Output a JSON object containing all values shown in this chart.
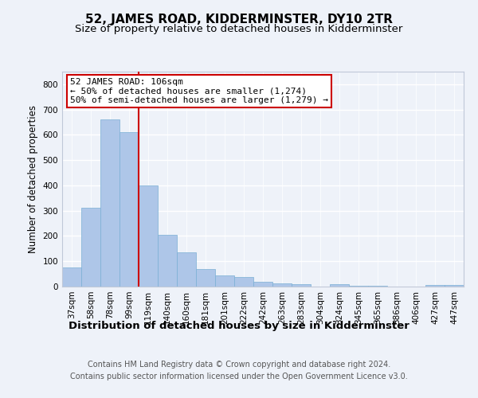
{
  "title": "52, JAMES ROAD, KIDDERMINSTER, DY10 2TR",
  "subtitle": "Size of property relative to detached houses in Kidderminster",
  "xlabel": "Distribution of detached houses by size in Kidderminster",
  "ylabel": "Number of detached properties",
  "categories": [
    "37sqm",
    "58sqm",
    "78sqm",
    "99sqm",
    "119sqm",
    "140sqm",
    "160sqm",
    "181sqm",
    "201sqm",
    "222sqm",
    "242sqm",
    "263sqm",
    "283sqm",
    "304sqm",
    "324sqm",
    "345sqm",
    "365sqm",
    "386sqm",
    "406sqm",
    "427sqm",
    "447sqm"
  ],
  "values": [
    75,
    313,
    660,
    610,
    400,
    205,
    135,
    70,
    45,
    37,
    18,
    12,
    10,
    0,
    8,
    4,
    4,
    0,
    0,
    7,
    5
  ],
  "bar_color": "#aec6e8",
  "bar_edge_color": "#7aafd4",
  "vline_x": 3.5,
  "vline_color": "#cc0000",
  "annotation_text": "52 JAMES ROAD: 106sqm\n← 50% of detached houses are smaller (1,274)\n50% of semi-detached houses are larger (1,279) →",
  "annotation_box_color": "#ffffff",
  "annotation_box_edge": "#cc0000",
  "ylim": [
    0,
    850
  ],
  "yticks": [
    0,
    100,
    200,
    300,
    400,
    500,
    600,
    700,
    800
  ],
  "footer": "Contains HM Land Registry data © Crown copyright and database right 2024.\nContains public sector information licensed under the Open Government Licence v3.0.",
  "bg_color": "#eef2f9",
  "grid_color": "#ffffff",
  "title_fontsize": 11,
  "subtitle_fontsize": 9.5,
  "xlabel_fontsize": 9.5,
  "ylabel_fontsize": 8.5,
  "tick_fontsize": 7.5,
  "footer_fontsize": 7.0,
  "ann_fontsize": 8.0
}
